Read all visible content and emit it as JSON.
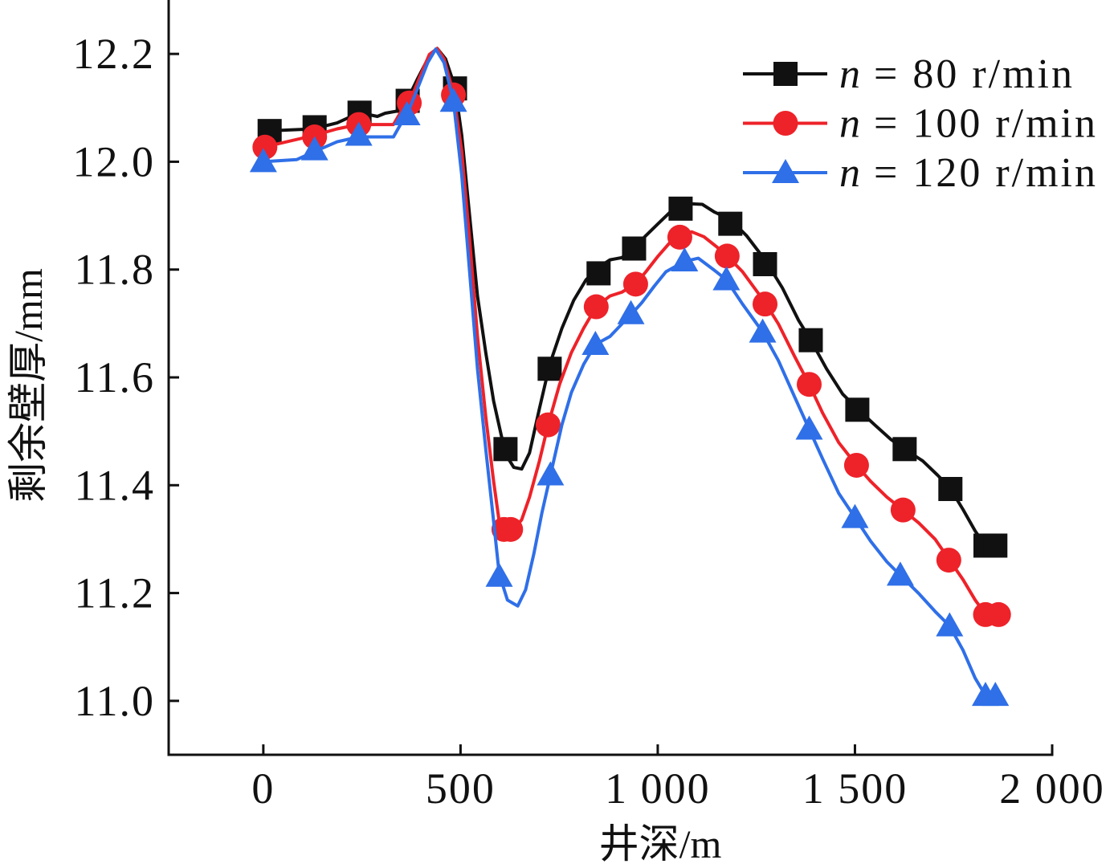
{
  "chart_data": {
    "type": "line",
    "xlabel": "井深/m",
    "ylabel": "剩余壁厚/mm",
    "xlim": [
      -240,
      2000
    ],
    "ylim": [
      10.9,
      12.3
    ],
    "xticks": [
      0,
      500,
      1000,
      1500,
      2000
    ],
    "xtick_labels": [
      "0",
      "500",
      "1 000",
      "1 500",
      "2 000"
    ],
    "yticks": [
      11.0,
      11.2,
      11.4,
      11.6,
      11.8,
      12.0,
      12.2
    ],
    "ytick_labels": [
      "11.0",
      "11.2",
      "11.4",
      "11.6",
      "11.8",
      "12.0",
      "12.2"
    ],
    "grid": false,
    "legend_position": "top-right",
    "series": [
      {
        "label_symbol": "n",
        "label_value": "= 80 r/min",
        "color": "#111111",
        "marker": "square",
        "x": [
          0,
          126,
          187,
          244,
          289,
          309,
          340,
          366,
          391,
          421,
          441,
          462,
          486,
          503,
          523,
          543,
          564,
          584,
          604,
          619,
          635,
          655,
          675,
          700,
          726,
          757,
          787,
          818,
          848,
          879,
          909,
          940,
          970,
          1001,
          1032,
          1058,
          1082,
          1113,
          1143,
          1184,
          1225,
          1272,
          1316,
          1357,
          1388,
          1428,
          1469,
          1506,
          1550,
          1591,
          1626,
          1672,
          1709,
          1740,
          1774,
          1805,
          1831,
          1856
        ],
        "y": [
          12.057,
          12.061,
          12.072,
          12.091,
          12.084,
          12.09,
          12.094,
          12.116,
          12.154,
          12.196,
          12.21,
          12.191,
          12.139,
          12.049,
          11.9,
          11.751,
          11.646,
          11.556,
          11.49,
          11.452,
          11.433,
          11.43,
          11.46,
          11.542,
          11.624,
          11.691,
          11.743,
          11.781,
          11.803,
          11.818,
          11.822,
          11.84,
          11.863,
          11.885,
          11.907,
          11.921,
          11.922,
          11.921,
          11.907,
          11.893,
          11.863,
          11.818,
          11.766,
          11.706,
          11.669,
          11.616,
          11.569,
          11.542,
          11.512,
          11.485,
          11.467,
          11.445,
          11.419,
          11.396,
          11.355,
          11.315,
          11.288,
          11.288
        ],
        "marker_x": [
          16,
          130,
          244,
          366,
          486,
          614,
          726,
          850,
          940,
          1058,
          1184,
          1272,
          1388,
          1506,
          1626,
          1742,
          1831,
          1856
        ],
        "marker_y": [
          12.057,
          12.064,
          12.091,
          12.113,
          12.136,
          11.467,
          11.616,
          11.793,
          11.839,
          11.913,
          11.885,
          11.81,
          11.669,
          11.54,
          11.467,
          11.393,
          11.288,
          11.288
        ]
      },
      {
        "label_symbol": "n",
        "label_value": "= 100 r/min",
        "color": "#ee2229",
        "marker": "circle",
        "x": [
          0,
          130,
          187,
          242,
          330,
          350,
          370,
          395,
          421,
          441,
          458,
          482,
          503,
          523,
          543,
          564,
          584,
          598,
          614,
          635,
          655,
          675,
          700,
          722,
          751,
          781,
          812,
          844,
          879,
          909,
          944,
          970,
          1001,
          1032,
          1056,
          1086,
          1117,
          1148,
          1176,
          1215,
          1245,
          1272,
          1306,
          1347,
          1384,
          1418,
          1459,
          1504,
          1540,
          1581,
          1622,
          1662,
          1703,
          1738,
          1774,
          1805,
          1831,
          1862
        ],
        "y": [
          12.027,
          12.049,
          12.061,
          12.069,
          12.069,
          12.094,
          12.109,
          12.154,
          12.199,
          12.21,
          12.191,
          12.127,
          12.019,
          11.855,
          11.676,
          11.527,
          11.407,
          11.333,
          11.315,
          11.318,
          11.336,
          11.378,
          11.445,
          11.512,
          11.587,
          11.646,
          11.691,
          11.731,
          11.751,
          11.758,
          11.773,
          11.796,
          11.825,
          11.851,
          11.86,
          11.87,
          11.861,
          11.843,
          11.825,
          11.796,
          11.766,
          11.739,
          11.699,
          11.639,
          11.587,
          11.534,
          11.479,
          11.437,
          11.407,
          11.378,
          11.354,
          11.33,
          11.3,
          11.263,
          11.225,
          11.187,
          11.161,
          11.16
        ],
        "marker_x": [
          4,
          130,
          242,
          370,
          482,
          610,
          627,
          722,
          844,
          944,
          1056,
          1176,
          1272,
          1384,
          1504,
          1622,
          1738,
          1831,
          1864
        ],
        "marker_y": [
          12.027,
          12.046,
          12.069,
          12.109,
          12.124,
          11.318,
          11.318,
          11.512,
          11.731,
          11.773,
          11.86,
          11.825,
          11.736,
          11.587,
          11.437,
          11.354,
          11.261,
          11.16,
          11.16
        ]
      },
      {
        "label_symbol": "n",
        "label_value": "= 120 r/min",
        "color": "#2f6fe8",
        "marker": "triangle",
        "x": [
          0,
          85,
          130,
          187,
          242,
          330,
          350,
          364,
          391,
          417,
          437,
          458,
          482,
          503,
          523,
          543,
          564,
          584,
          598,
          619,
          645,
          665,
          686,
          706,
          728,
          757,
          781,
          812,
          842,
          879,
          909,
          932,
          960,
          991,
          1021,
          1068,
          1103,
          1143,
          1174,
          1215,
          1266,
          1306,
          1347,
          1384,
          1418,
          1459,
          1500,
          1540,
          1581,
          1615,
          1662,
          1703,
          1740,
          1774,
          1805,
          1831,
          1856
        ],
        "y": [
          12.0,
          12.004,
          12.019,
          12.037,
          12.046,
          12.046,
          12.072,
          12.087,
          12.136,
          12.184,
          12.209,
          12.184,
          12.112,
          11.975,
          11.796,
          11.616,
          11.467,
          11.333,
          11.236,
          11.187,
          11.176,
          11.206,
          11.273,
          11.348,
          11.419,
          11.512,
          11.572,
          11.624,
          11.661,
          11.676,
          11.699,
          11.716,
          11.739,
          11.769,
          11.796,
          11.815,
          11.821,
          11.799,
          11.781,
          11.736,
          11.684,
          11.631,
          11.564,
          11.504,
          11.449,
          11.385,
          11.34,
          11.296,
          11.258,
          11.233,
          11.199,
          11.166,
          11.139,
          11.094,
          11.042,
          11.01,
          11.01
        ],
        "marker_x": [
          0,
          130,
          242,
          364,
          482,
          598,
          728,
          842,
          932,
          1068,
          1174,
          1266,
          1384,
          1500,
          1615,
          1740,
          1831,
          1856
        ],
        "marker_y": [
          12.0,
          12.022,
          12.049,
          12.087,
          12.112,
          11.231,
          11.419,
          11.661,
          11.718,
          11.816,
          11.781,
          11.684,
          11.504,
          11.34,
          11.233,
          11.139,
          11.01,
          11.01
        ]
      }
    ]
  }
}
